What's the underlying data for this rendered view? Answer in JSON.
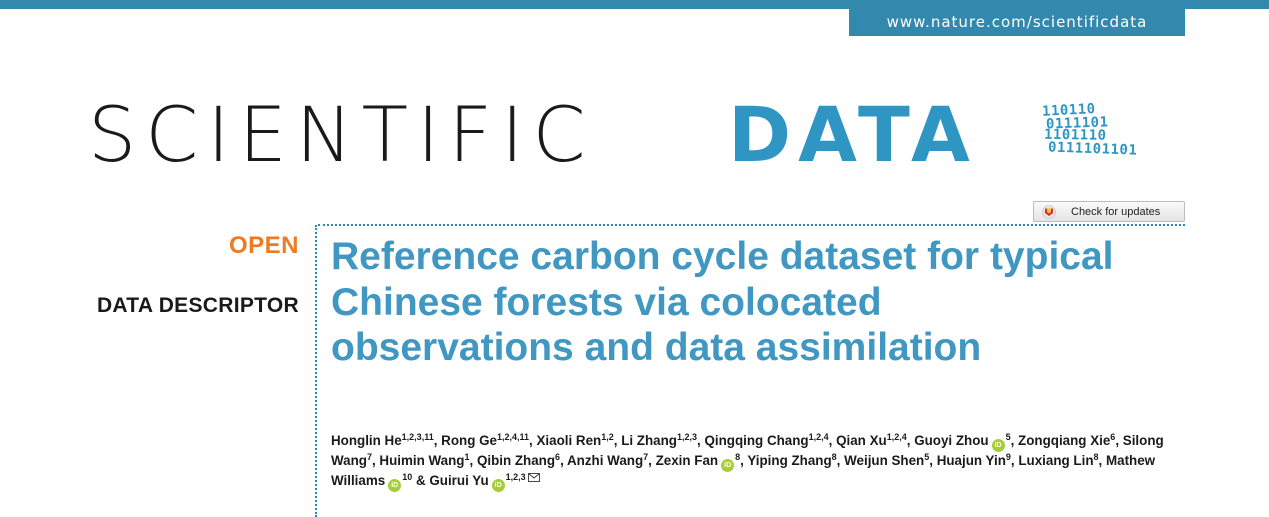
{
  "header": {
    "url": "www.nature.com/scientificdata",
    "brand_color": "#3389ad"
  },
  "logo": {
    "word_scientific": "SCIENTIFIC",
    "word_data": "DATA",
    "binary_lines": [
      "110110",
      "0111101",
      "1101110",
      "0111101101"
    ],
    "accent_color": "#2f96c4"
  },
  "check_updates": {
    "label": "Check for updates",
    "icon": "crossmark-icon"
  },
  "article": {
    "access_label": "OPEN",
    "access_color": "#f07a23",
    "type_label": "DATA DESCRIPTOR",
    "title": "Reference carbon cycle dataset for typical Chinese forests via colocated observations and data assimilation",
    "title_color": "#3f97c2"
  },
  "authors": [
    {
      "name": "Honglin He",
      "aff": "1,2,3,11",
      "orcid": false
    },
    {
      "name": "Rong Ge",
      "aff": "1,2,4,11",
      "orcid": false
    },
    {
      "name": "Xiaoli Ren",
      "aff": "1,2",
      "orcid": false
    },
    {
      "name": "Li Zhang",
      "aff": "1,2,3",
      "orcid": false
    },
    {
      "name": "Qingqing Chang",
      "aff": "1,2,4",
      "orcid": false
    },
    {
      "name": "Qian Xu",
      "aff": "1,2,4",
      "orcid": false
    },
    {
      "name": "Guoyi Zhou",
      "aff": "5",
      "orcid": true
    },
    {
      "name": "Zongqiang Xie",
      "aff": "6",
      "orcid": false
    },
    {
      "name": "Silong Wang",
      "aff": "7",
      "orcid": false
    },
    {
      "name": "Huimin Wang",
      "aff": "1",
      "orcid": false
    },
    {
      "name": "Qibin Zhang",
      "aff": "6",
      "orcid": false
    },
    {
      "name": "Anzhi Wang",
      "aff": "7",
      "orcid": false
    },
    {
      "name": "Zexin Fan",
      "aff": "8",
      "orcid": true
    },
    {
      "name": "Yiping Zhang",
      "aff": "8",
      "orcid": false
    },
    {
      "name": "Weijun Shen",
      "aff": "5",
      "orcid": false
    },
    {
      "name": "Huajun Yin",
      "aff": "9",
      "orcid": false
    },
    {
      "name": "Luxiang Lin",
      "aff": "8",
      "orcid": false
    },
    {
      "name": "Mathew Williams",
      "aff": "10",
      "orcid": true
    },
    {
      "name": "Guirui Yu",
      "aff": "1,2,3",
      "orcid": true,
      "email": true
    }
  ],
  "icons": {
    "orcid": "orcid-icon",
    "orcid_text": "iD",
    "email": "envelope-icon"
  }
}
